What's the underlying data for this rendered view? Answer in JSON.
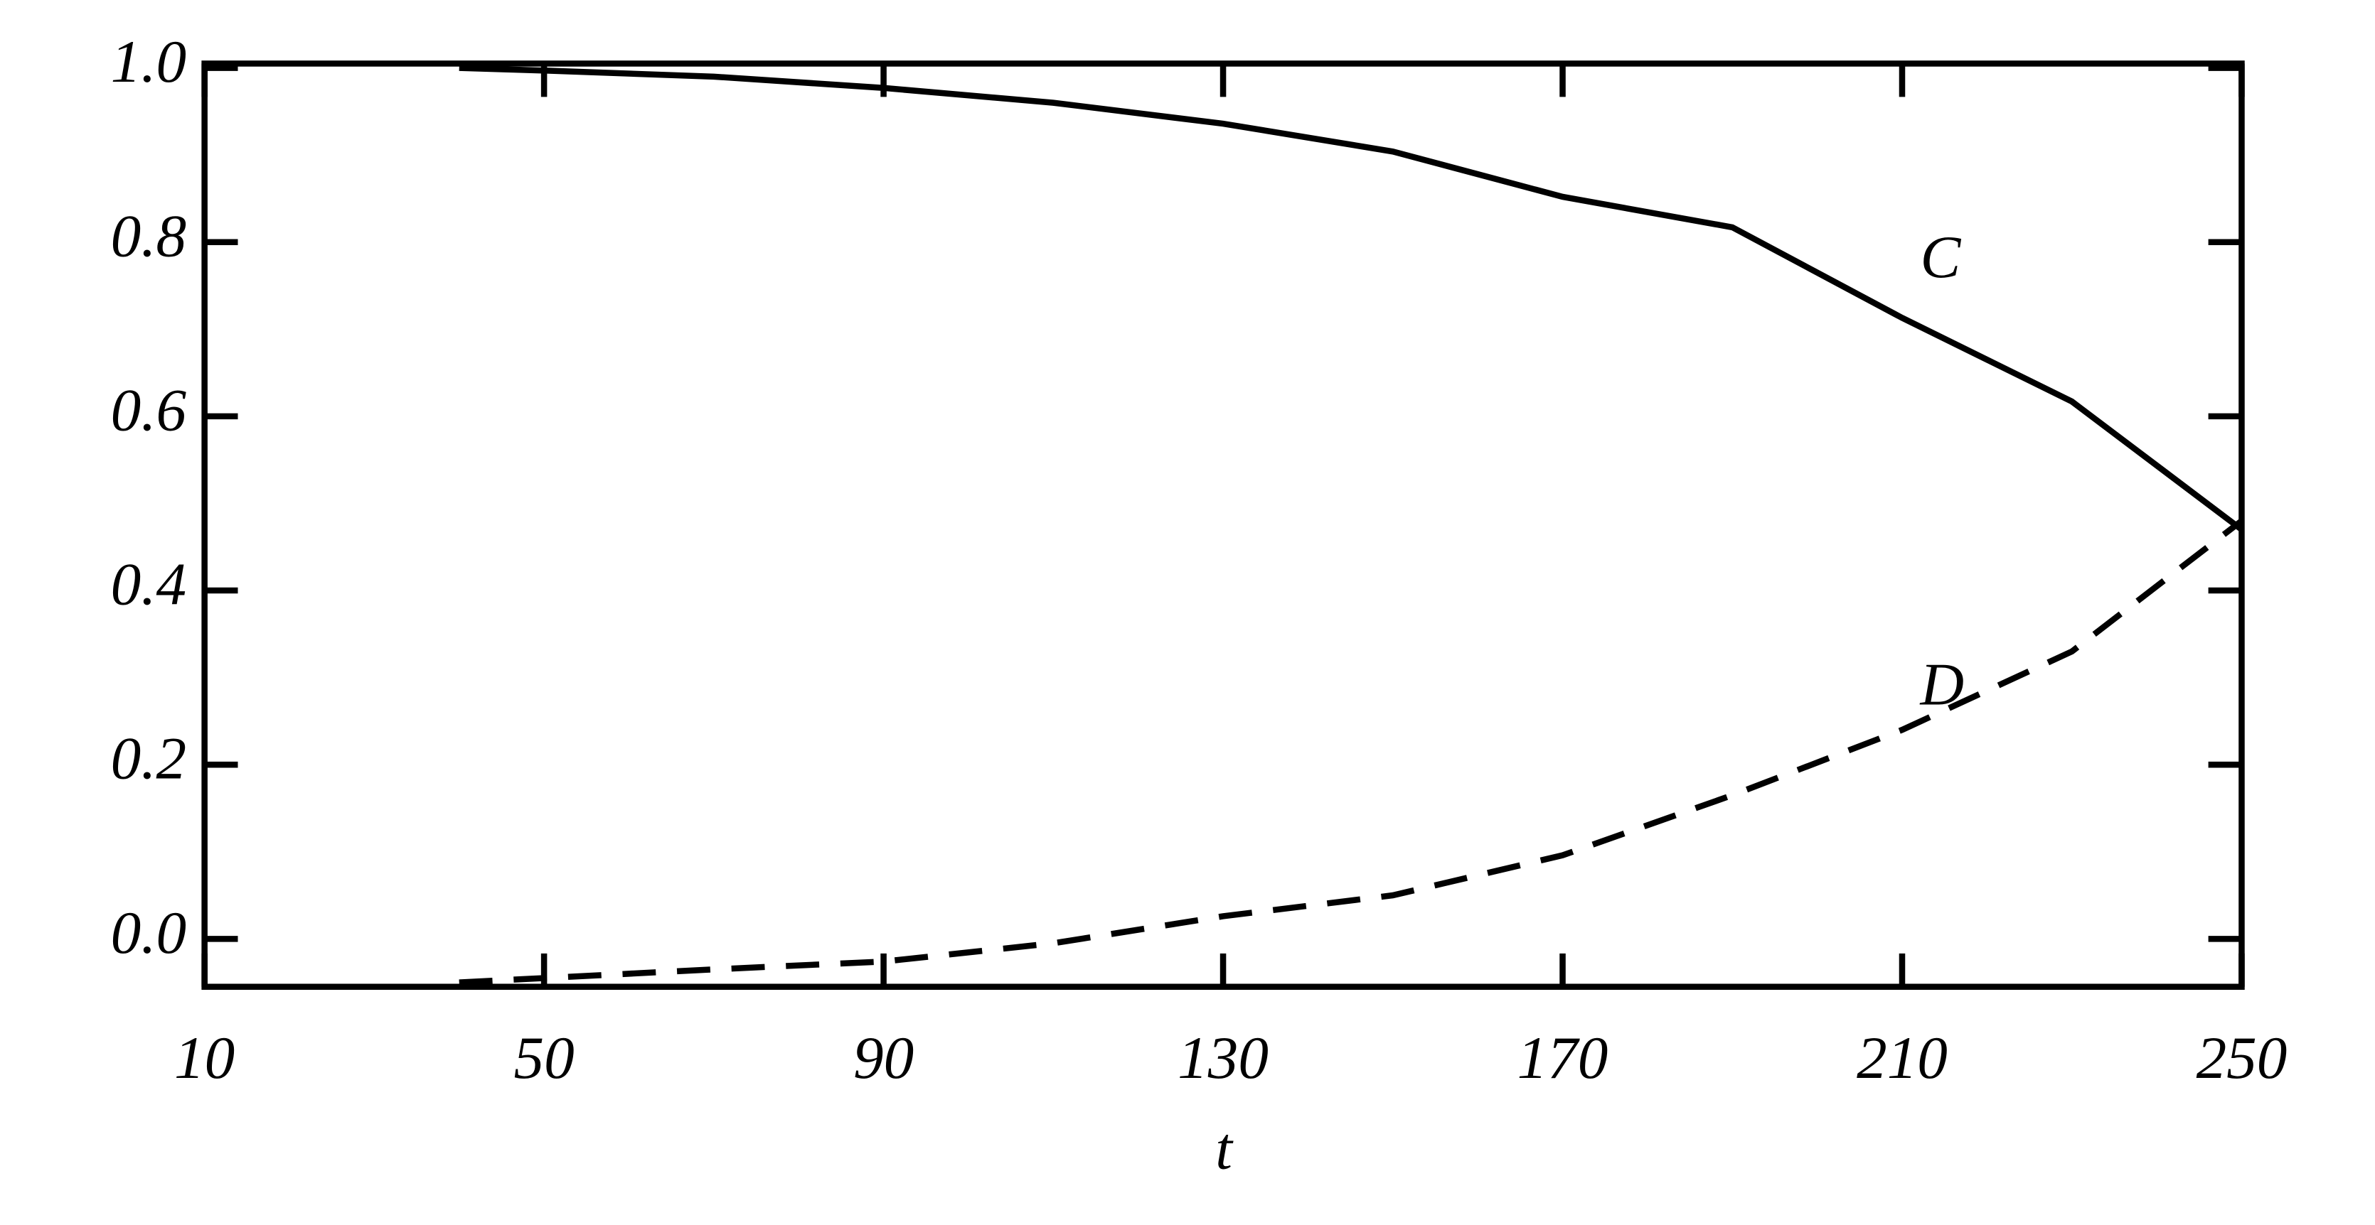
{
  "chart_data": {
    "type": "line",
    "x_label": "t",
    "x": [
      40,
      50,
      70,
      90,
      110,
      130,
      150,
      170,
      190,
      210,
      230,
      250
    ],
    "series": [
      {
        "name": "C",
        "color": "#000000",
        "dash": false,
        "values": [
          1.0,
          0.997,
          0.99,
          0.977,
          0.96,
          0.936,
          0.904,
          0.852,
          0.817,
          0.713,
          0.617,
          0.47
        ]
      },
      {
        "name": "D",
        "color": "#000000",
        "dash": true,
        "values": [
          -0.05,
          -0.045,
          -0.035,
          -0.026,
          -0.005,
          0.026,
          0.05,
          0.096,
          0.165,
          0.24,
          0.33,
          0.48
        ]
      }
    ],
    "xlim": [
      10,
      250
    ],
    "xticks": [
      10,
      50,
      90,
      130,
      170,
      210,
      250
    ],
    "ylim": [
      -0.055,
      1.005
    ],
    "yticks": [
      {
        "value": 0,
        "label": "0.0"
      },
      0.2,
      0.4,
      0.6,
      0.8,
      {
        "value": 1,
        "label": "1.0"
      }
    ]
  }
}
